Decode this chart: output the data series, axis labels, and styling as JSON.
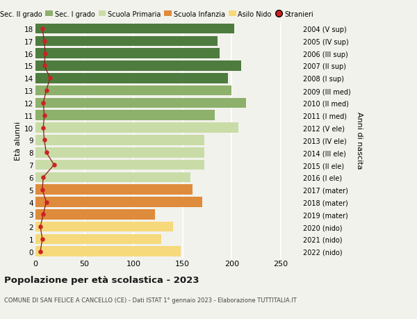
{
  "ages": [
    0,
    1,
    2,
    3,
    4,
    5,
    6,
    7,
    8,
    9,
    10,
    11,
    12,
    13,
    14,
    15,
    16,
    17,
    18
  ],
  "labels_right": [
    "2022 (nido)",
    "2021 (nido)",
    "2020 (nido)",
    "2019 (mater)",
    "2018 (mater)",
    "2017 (mater)",
    "2016 (I ele)",
    "2015 (II ele)",
    "2014 (III ele)",
    "2013 (IV ele)",
    "2012 (V ele)",
    "2011 (I med)",
    "2010 (II med)",
    "2009 (III med)",
    "2008 (I sup)",
    "2007 (II sup)",
    "2006 (III sup)",
    "2005 (IV sup)",
    "2004 (V sup)"
  ],
  "bar_values": [
    148,
    128,
    140,
    122,
    170,
    160,
    158,
    172,
    172,
    172,
    207,
    183,
    215,
    200,
    196,
    210,
    188,
    186,
    203
  ],
  "stranieri_values": [
    5,
    7,
    5,
    8,
    11,
    7,
    8,
    19,
    11,
    9,
    8,
    9,
    8,
    11,
    15,
    9,
    10,
    9,
    7
  ],
  "bar_colors": [
    "#f5d97a",
    "#f5d97a",
    "#f5d97a",
    "#df8b3c",
    "#df8b3c",
    "#df8b3c",
    "#c9dca8",
    "#c9dca8",
    "#c9dca8",
    "#c9dca8",
    "#c9dca8",
    "#8db06a",
    "#8db06a",
    "#8db06a",
    "#4e7c3e",
    "#4e7c3e",
    "#4e7c3e",
    "#4e7c3e",
    "#4e7c3e"
  ],
  "legend_colors": [
    "#4e7c3e",
    "#8db06a",
    "#c9dca8",
    "#df8b3c",
    "#f5d97a"
  ],
  "legend_labels": [
    "Sec. II grado",
    "Sec. I grado",
    "Scuola Primaria",
    "Scuola Infanzia",
    "Asilo Nido",
    "Stranieri"
  ],
  "stranieri_dot_color": "#cc2222",
  "stranieri_line_color": "#8b1a1a",
  "title": "Popolazione per età scolastica - 2023",
  "subtitle": "COMUNE DI SAN FELICE A CANCELLO (CE) - Dati ISTAT 1° gennaio 2023 - Elaborazione TUTTITALIA.IT",
  "ylabel_left": "Età alunni",
  "ylabel_right": "Anni di nascita",
  "xlim": [
    0,
    270
  ],
  "xticks": [
    0,
    50,
    100,
    150,
    200,
    250
  ],
  "background_color": "#f2f2ec",
  "grid_color": "#ffffff",
  "bar_height": 0.82
}
